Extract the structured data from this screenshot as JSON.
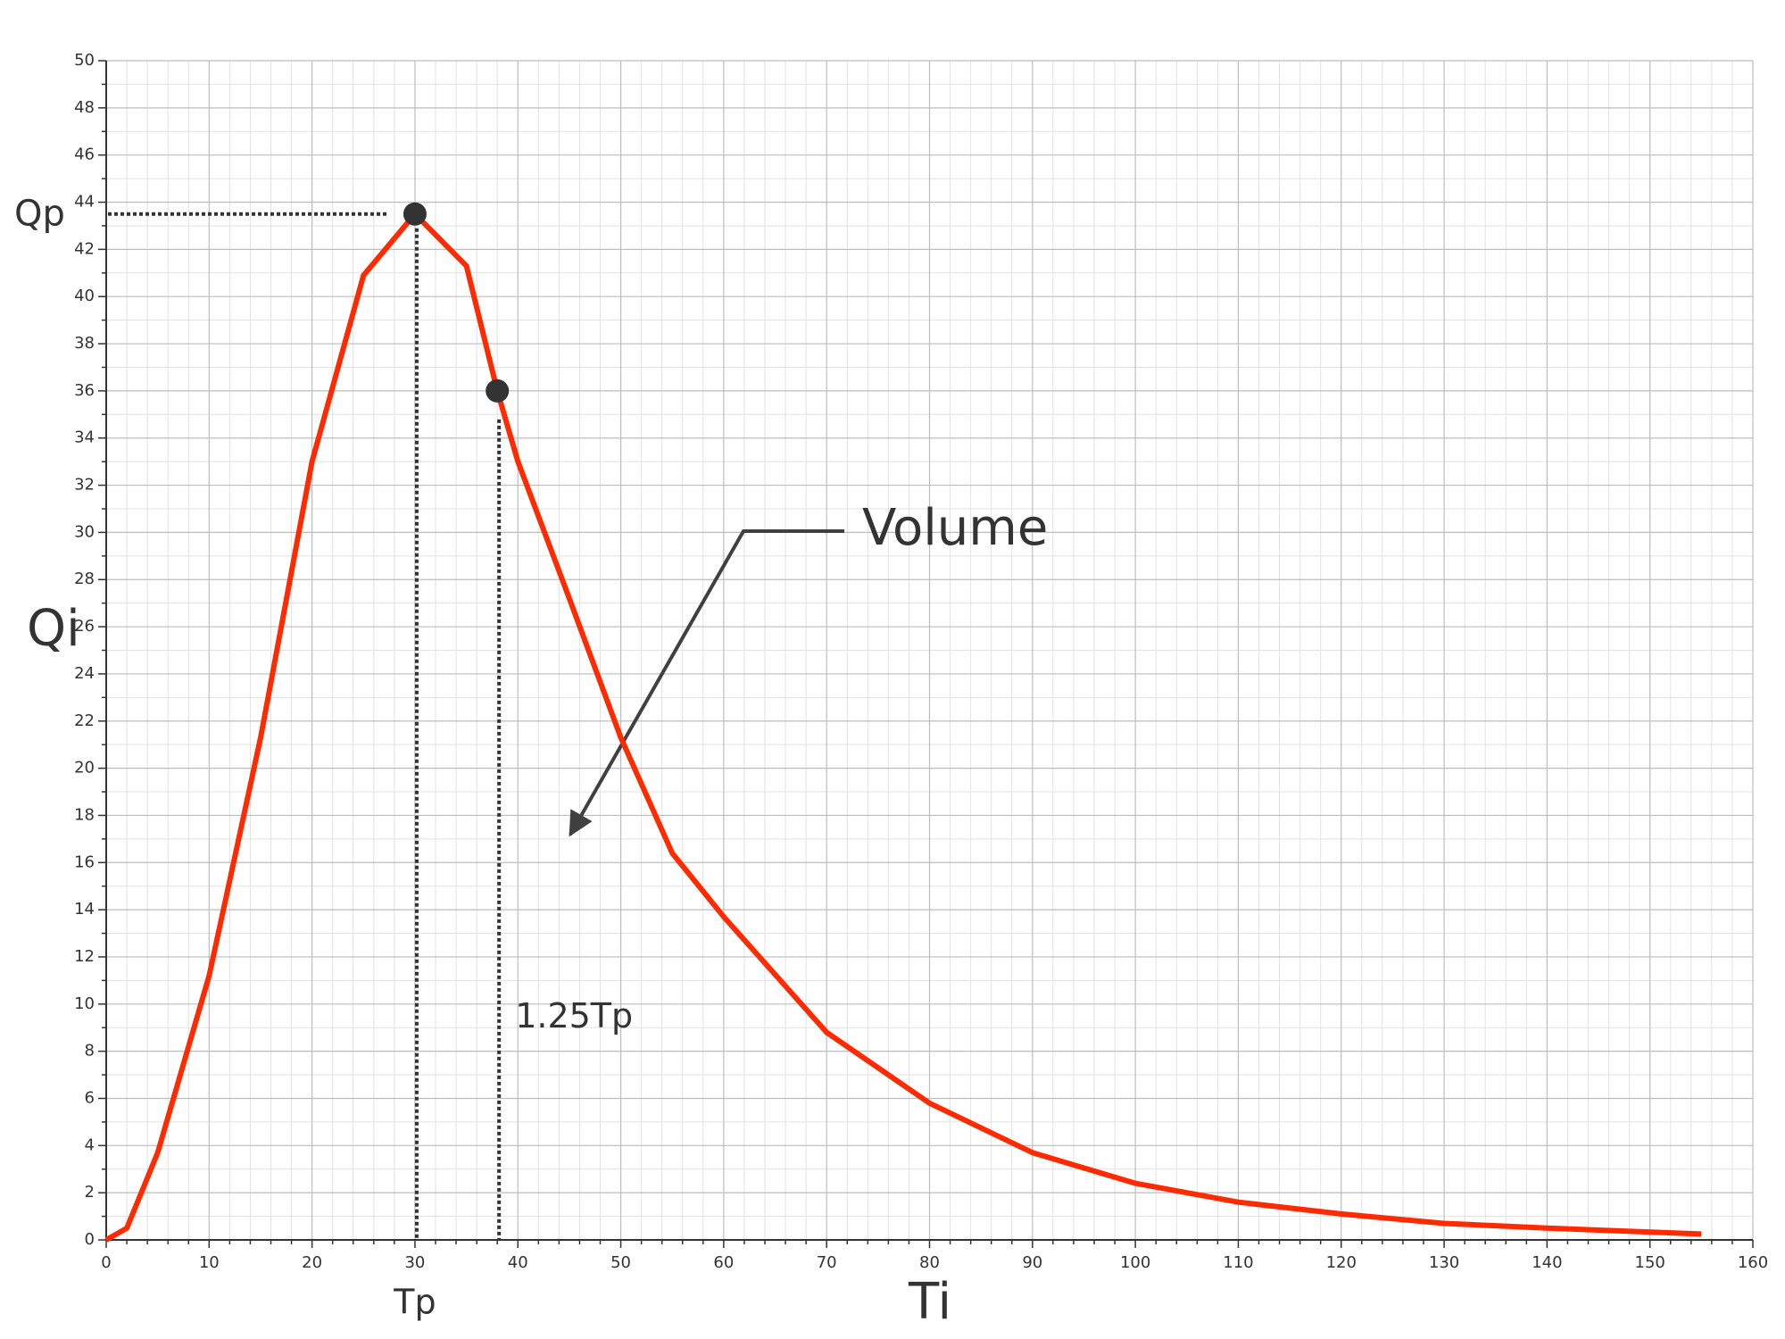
{
  "chart_data": {
    "type": "line",
    "x": [
      0,
      2,
      5,
      10,
      15,
      20,
      25,
      30,
      35,
      38,
      40,
      45,
      50,
      55,
      60,
      70,
      80,
      90,
      100,
      110,
      120,
      130,
      140,
      155
    ],
    "series": [
      {
        "color": "#ff2a00",
        "values": [
          0,
          0.5,
          3.7,
          11.2,
          21.3,
          33,
          40.9,
          43.5,
          41.3,
          36,
          33,
          27.2,
          21.3,
          16.4,
          13.7,
          8.8,
          5.8,
          3.7,
          2.4,
          1.6,
          1.1,
          0.7,
          0.5,
          0.25
        ]
      }
    ],
    "xlim": [
      0,
      160
    ],
    "xticks": [
      0,
      10,
      20,
      30,
      40,
      50,
      60,
      70,
      80,
      90,
      100,
      110,
      120,
      130,
      140,
      150,
      160
    ],
    "ylim": [
      0,
      50
    ],
    "yticks": [
      0,
      2,
      4,
      6,
      8,
      10,
      12,
      14,
      16,
      18,
      20,
      22,
      24,
      26,
      28,
      30,
      32,
      34,
      36,
      38,
      40,
      42,
      44,
      46,
      48,
      50
    ],
    "grid": true,
    "x_label": "Ti",
    "y_label": "Qi",
    "markers": [
      {
        "x": 30,
        "y": 43.5,
        "y_text": "Qp",
        "x_text": "Tp"
      },
      {
        "x": 38,
        "y": 36,
        "x_text": "1.25Tp"
      }
    ],
    "callout": "Volume"
  }
}
